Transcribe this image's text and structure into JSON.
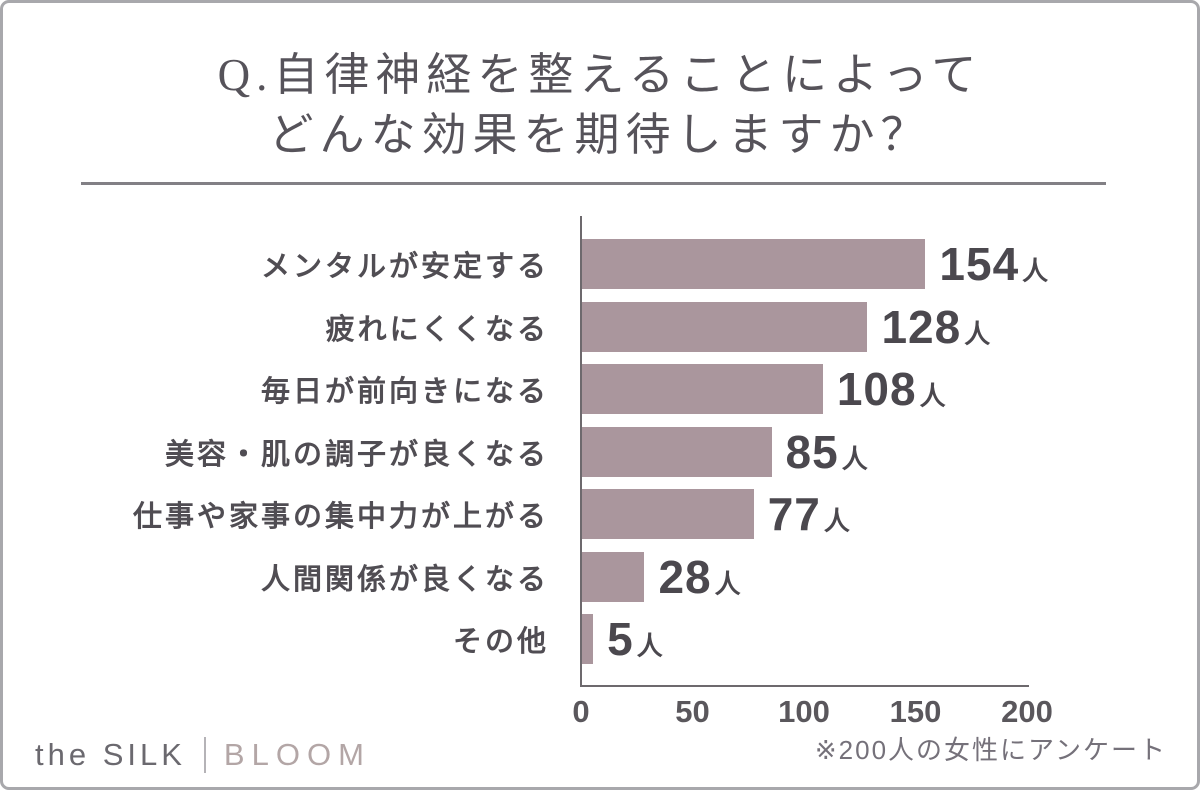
{
  "title": {
    "line1": "Q.自律神経を整えることによって",
    "line2": "どんな効果を期待しますか？"
  },
  "chart_data": {
    "type": "bar",
    "orientation": "horizontal",
    "title": "Q.自律神経を整えることによって どんな効果を期待しますか？",
    "categories": [
      "メンタルが安定する",
      "疲れにくくなる",
      "毎日が前向きになる",
      "美容・肌の調子が良くなる",
      "仕事や家事の集中力が上がる",
      "人間関係が良くなる",
      "その他"
    ],
    "values": [
      154,
      128,
      108,
      85,
      77,
      28,
      5
    ],
    "unit": "人",
    "xlabel": "",
    "ylabel": "",
    "xlim": [
      0,
      200
    ],
    "xticks": [
      0,
      50,
      100,
      150,
      200
    ],
    "grid": false,
    "legend": false,
    "bar_color": "#aa969d",
    "source_note": "※200人の女性にアンケート"
  },
  "footer": {
    "brand_left": "the SILK",
    "brand_right": "BLOOM",
    "note": "※200人の女性にアンケート"
  },
  "colors": {
    "bar": "#aa969d",
    "axis": "#6d696d",
    "title_text": "#56535a",
    "category_text": "#504d53",
    "value_text": "#4b484e",
    "tick_text": "#5a575c",
    "frame_border": "#a8a8ac",
    "brand_left": "#6b696f",
    "brand_right": "#b3a6a6"
  }
}
